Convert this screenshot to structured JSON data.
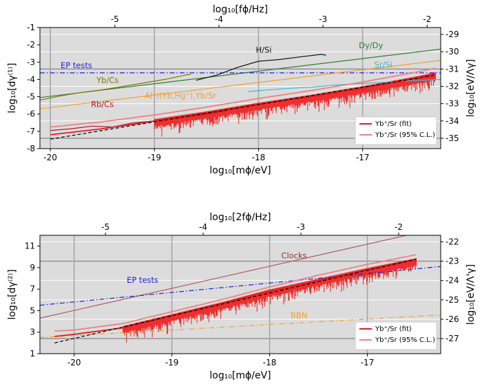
{
  "chart_data": [
    {
      "type": "line",
      "panel": "top",
      "xlabel": "log₁₀[mϕ/eV]",
      "x2label": "log₁₀[fϕ/Hz]",
      "ylabel": "log₁₀[dγ⁽¹⁾]",
      "y2label": "log₁₀[eV/Λγ]",
      "xlim": [
        -20.1,
        -16.25
      ],
      "ylim": [
        -8,
        -1
      ],
      "xticks": [
        {
          "v": -20,
          "label": "-20"
        },
        {
          "v": -19,
          "label": "-19"
        },
        {
          "v": -18,
          "label": "-18"
        },
        {
          "v": -17,
          "label": "-17"
        }
      ],
      "x2ticks": [
        {
          "v": -19.38,
          "label": "-5"
        },
        {
          "v": -18.38,
          "label": "-4"
        },
        {
          "v": -17.38,
          "label": "-3"
        },
        {
          "v": -16.38,
          "label": "-2"
        }
      ],
      "yticks": [
        {
          "v": -1,
          "label": "-1"
        },
        {
          "v": -2,
          "label": "-2"
        },
        {
          "v": -3,
          "label": "-3"
        },
        {
          "v": -4,
          "label": "-4"
        },
        {
          "v": -5,
          "label": "-5"
        },
        {
          "v": -6,
          "label": "-6"
        },
        {
          "v": -7,
          "label": "-7"
        },
        {
          "v": -8,
          "label": "-8"
        }
      ],
      "y2ticks": [
        {
          "v": -1.4,
          "label": "-29"
        },
        {
          "v": -2.4,
          "label": "-30"
        },
        {
          "v": -3.4,
          "label": "-31"
        },
        {
          "v": -4.4,
          "label": "-32"
        },
        {
          "v": -5.4,
          "label": "-33"
        },
        {
          "v": -6.4,
          "label": "-34"
        },
        {
          "v": -7.4,
          "label": "-35"
        }
      ],
      "grid": true,
      "legend_position": "lower-right",
      "legend": [
        {
          "label": "Yb⁺/Sr (fit)",
          "color": "#e41a1c"
        },
        {
          "label": "Yb⁺/Sr (95% C.L.)",
          "color": "#f08080"
        }
      ],
      "series": [
        {
          "label": "Dy/Dy",
          "color": "#2e7d32",
          "x": [
            -20.1,
            -16.25
          ],
          "y": [
            -5.05,
            -2.25
          ]
        },
        {
          "label": "EP tests",
          "color": "#1f1fd6",
          "style": "dashdot",
          "x": [
            -20.1,
            -16.25
          ],
          "y": [
            -3.62,
            -3.62
          ]
        },
        {
          "label": "H/Si",
          "color": "#111111",
          "x": [
            -18.6,
            -18.4,
            -18.2,
            -18.0,
            -17.8,
            -17.6,
            -17.4,
            -17.35
          ],
          "y": [
            -4.05,
            -3.75,
            -3.3,
            -2.95,
            -2.85,
            -2.7,
            -2.55,
            -2.6
          ]
        },
        {
          "label": "Yb/Cs",
          "color": "#7a7a00",
          "x": [
            -20.1,
            -19.9,
            -19.7,
            -19.5,
            -19.3,
            -19.1,
            -18.9,
            -18.7,
            -18.65
          ],
          "y": [
            -5.2,
            -4.95,
            -4.75,
            -4.6,
            -4.4,
            -4.2,
            -4.0,
            -3.75,
            -3.7
          ]
        },
        {
          "label": "Al⁺/(Yb,Hg⁺),Yb/Sr",
          "color": "#f0a030",
          "x": [
            -20.1,
            -16.25
          ],
          "y": [
            -5.7,
            -2.9
          ]
        },
        {
          "label": "Sr/Si",
          "color": "#3cb8c8",
          "x": [
            -18.1,
            -17.8,
            -17.5,
            -17.2,
            -16.9,
            -16.6,
            -16.25
          ],
          "y": [
            -4.7,
            -4.55,
            -4.45,
            -4.3,
            -4.2,
            -4.1,
            -4.0
          ]
        },
        {
          "label": "Rb/Cs",
          "color": "#b2182b",
          "x": [
            -20.0,
            -19.8,
            -19.6,
            -19.4,
            -19.2,
            -19.0,
            -18.8,
            -18.6,
            -18.4,
            -18.3
          ],
          "y": [
            -6.95,
            -6.85,
            -6.7,
            -6.75,
            -6.5,
            -6.4,
            -6.2,
            -6.1,
            -5.9,
            -5.8
          ]
        },
        {
          "label": "Yb⁺/Sr (fit)",
          "color": "#e41a1c",
          "x": [
            -20.0,
            -19.5,
            -19.0,
            -18.5,
            -18.0,
            -17.5,
            -17.0,
            -16.5,
            -16.3
          ],
          "y": [
            -7.2,
            -6.85,
            -6.4,
            -5.95,
            -5.45,
            -5.0,
            -4.5,
            -3.95,
            -3.7
          ]
        },
        {
          "label": "Yb⁺/Sr (95% C.L.)",
          "color": "#f08080",
          "x": [
            -20.0,
            -19.5,
            -19.0,
            -18.5,
            -18.0,
            -17.5,
            -17.0,
            -16.5,
            -16.3
          ],
          "y": [
            -6.75,
            -6.45,
            -6.05,
            -5.6,
            -5.1,
            -4.65,
            -4.15,
            -3.6,
            -3.35
          ]
        },
        {
          "label": "lower bound",
          "color": "#000000",
          "style": "dashed",
          "x": [
            -20.0,
            -16.3
          ],
          "y": [
            -7.45,
            -3.75
          ]
        }
      ],
      "annotations": [
        {
          "text": "H/Si",
          "color": "#111111",
          "x": -17.95,
          "y": -2.45
        },
        {
          "text": "Dy/Dy",
          "color": "#2e7d32",
          "x": -16.92,
          "y": -2.2
        },
        {
          "text": "EP tests",
          "color": "#1f1fd6",
          "x": -19.75,
          "y": -3.35
        },
        {
          "text": "Sr/Si",
          "color": "#3cb8c8",
          "x": -16.8,
          "y": -3.3
        },
        {
          "text": "Yb/Cs",
          "color": "#7a7a00",
          "x": -19.45,
          "y": -4.2
        },
        {
          "text": "Al⁺/(Yb,Hg⁺),Yb/Sr",
          "color": "#f0a030",
          "x": -18.75,
          "y": -5.1
        },
        {
          "text": "Rb/Cs",
          "color": "#b2182b",
          "x": -19.5,
          "y": -5.6
        }
      ]
    },
    {
      "type": "line",
      "panel": "bottom",
      "xlabel": "log₁₀[mϕ/eV]",
      "x2label": "log₁₀[2fϕ/Hz]",
      "ylabel": "log₁₀[dγ⁽²⁾]",
      "y2label": "log₁₀[eV/Λ'γ]",
      "xlim": [
        -20.35,
        -16.25
      ],
      "ylim": [
        1,
        12
      ],
      "xticks": [
        {
          "v": -20,
          "label": "-20"
        },
        {
          "v": -19,
          "label": "-19"
        },
        {
          "v": -18,
          "label": "-18"
        },
        {
          "v": -17,
          "label": "-17"
        }
      ],
      "x2ticks": [
        {
          "v": -19.68,
          "label": "-5"
        },
        {
          "v": -18.68,
          "label": "-4"
        },
        {
          "v": -17.68,
          "label": "-3"
        },
        {
          "v": -16.68,
          "label": "-2"
        }
      ],
      "yticks": [
        {
          "v": 1,
          "label": "1"
        },
        {
          "v": 3,
          "label": "3"
        },
        {
          "v": 5,
          "label": "5"
        },
        {
          "v": 7,
          "label": "7"
        },
        {
          "v": 9,
          "label": "9"
        },
        {
          "v": 11,
          "label": "11"
        }
      ],
      "y2ticks": [
        {
          "v": 11.4,
          "label": "-22"
        },
        {
          "v": 9.6,
          "label": "-23"
        },
        {
          "v": 7.8,
          "label": "-24"
        },
        {
          "v": 6.0,
          "label": "-25"
        },
        {
          "v": 4.2,
          "label": "-26"
        },
        {
          "v": 2.4,
          "label": "-27"
        }
      ],
      "grid": true,
      "legend_position": "lower-right",
      "legend": [
        {
          "label": "Yb⁺/Sr (fit)",
          "color": "#e41a1c"
        },
        {
          "label": "Yb⁺/Sr (95% C.L.)",
          "color": "#f08080"
        }
      ],
      "series": [
        {
          "label": "Clocks",
          "color": "#b05a5a",
          "x": [
            -20.35,
            -16.6
          ],
          "y": [
            4.3,
            12.0
          ]
        },
        {
          "label": "EP tests",
          "color": "#1f1fd6",
          "style": "dashdot",
          "x": [
            -20.35,
            -16.25
          ],
          "y": [
            5.5,
            9.1
          ]
        },
        {
          "label": "BBN",
          "color": "#f0a030",
          "style": "dashdot",
          "x": [
            -20.35,
            -16.25
          ],
          "y": [
            2.5,
            4.6
          ]
        },
        {
          "label": "Yb⁺/Sr (fit)",
          "color": "#e41a1c",
          "x": [
            -20.2,
            -20.0,
            -19.5,
            -19.0,
            -18.5,
            -18.0,
            -17.5,
            -17.0,
            -16.5
          ],
          "y": [
            2.6,
            2.8,
            3.4,
            4.5,
            5.6,
            6.8,
            7.8,
            8.8,
            9.7
          ]
        },
        {
          "label": "Yb⁺/Sr (95% C.L.)",
          "color": "#f08080",
          "x": [
            -20.2,
            -20.0,
            -19.5,
            -19.0,
            -18.5,
            -18.0,
            -17.5,
            -17.0,
            -16.5
          ],
          "y": [
            3.1,
            3.2,
            3.8,
            4.9,
            6.0,
            7.2,
            8.3,
            9.3,
            10.2
          ]
        },
        {
          "label": "lower bound",
          "color": "#000000",
          "style": "dashed",
          "x": [
            -20.2,
            -16.5
          ],
          "y": [
            2.0,
            9.8
          ]
        }
      ],
      "annotations": [
        {
          "text": "Clocks",
          "color": "#9b2d2d",
          "x": -17.75,
          "y": 9.85
        },
        {
          "text": "EP tests",
          "color": "#1f1fd6",
          "x": -19.3,
          "y": 7.6
        },
        {
          "text": "BBN",
          "color": "#f0a030",
          "x": -17.7,
          "y": 4.3
        }
      ]
    }
  ]
}
